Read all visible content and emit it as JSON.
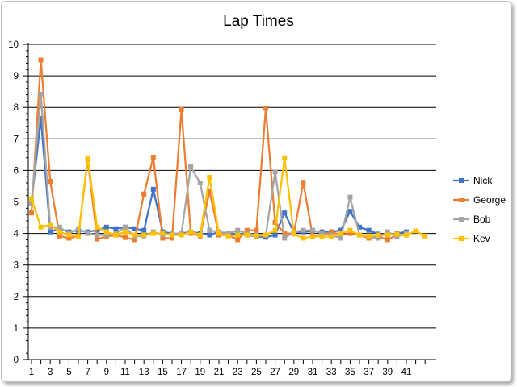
{
  "chart_data": {
    "type": "line",
    "title": "Lap Times",
    "xlabel": "",
    "ylabel": "",
    "ylim": [
      0,
      10
    ],
    "yticks": [
      0,
      1,
      2,
      3,
      4,
      5,
      6,
      7,
      8,
      9,
      10
    ],
    "x": [
      1,
      2,
      3,
      4,
      5,
      6,
      7,
      8,
      9,
      10,
      11,
      12,
      13,
      14,
      15,
      16,
      17,
      18,
      19,
      20,
      21,
      22,
      23,
      24,
      25,
      26,
      27,
      28,
      29,
      30,
      31,
      32,
      33,
      34,
      35,
      36,
      37,
      38,
      39,
      40,
      41,
      42,
      43
    ],
    "xtick_labels": [
      "1",
      "3",
      "5",
      "7",
      "9",
      "11",
      "13",
      "15",
      "17",
      "19",
      "21",
      "23",
      "25",
      "27",
      "29",
      "31",
      "33",
      "35",
      "37",
      "39",
      "41"
    ],
    "legend_position": "right",
    "grid": "horizontal",
    "series": [
      {
        "name": "Nick",
        "color": "#4472C4",
        "marker": "square",
        "values": [
          5.0,
          7.65,
          4.05,
          4.15,
          4.05,
          4.1,
          4.05,
          4.1,
          4.2,
          4.15,
          4.2,
          4.15,
          4.1,
          5.4,
          4.05,
          4.0,
          4.0,
          4.05,
          4.0,
          3.95,
          4.05,
          3.98,
          4.0,
          3.95,
          3.9,
          3.88,
          3.95,
          4.65,
          4.05,
          4.05,
          4.07,
          4.05,
          4.05,
          4.1,
          4.7,
          4.2,
          4.1,
          3.98,
          3.95,
          4.0,
          4.05,
          null,
          null
        ]
      },
      {
        "name": "George",
        "color": "#ED7D31",
        "marker": "square",
        "values": [
          4.65,
          9.5,
          5.65,
          3.92,
          3.85,
          3.92,
          6.35,
          3.82,
          3.9,
          3.95,
          3.87,
          3.8,
          5.25,
          6.42,
          3.85,
          3.85,
          7.93,
          4.0,
          3.92,
          5.35,
          3.95,
          3.95,
          3.8,
          4.1,
          4.1,
          7.97,
          4.35,
          4.0,
          4.0,
          5.62,
          3.92,
          3.95,
          4.05,
          3.95,
          4.0,
          3.95,
          3.85,
          3.9,
          3.8,
          3.95,
          3.95,
          null,
          null
        ]
      },
      {
        "name": "Bob",
        "color": "#A5A5A5",
        "marker": "square",
        "values": [
          4.95,
          8.42,
          4.2,
          4.2,
          4.0,
          4.15,
          4.0,
          3.95,
          3.95,
          4.0,
          4.2,
          3.9,
          3.92,
          4.05,
          3.95,
          4.0,
          4.0,
          6.12,
          5.6,
          4.1,
          4.05,
          4.0,
          4.1,
          4.0,
          3.95,
          3.95,
          5.95,
          3.85,
          4.05,
          4.1,
          4.1,
          4.0,
          3.95,
          3.85,
          5.15,
          3.95,
          3.9,
          3.85,
          4.05,
          3.9,
          4.0,
          null,
          null
        ]
      },
      {
        "name": "Kev",
        "color": "#FFC000",
        "marker": "square",
        "values": [
          5.1,
          4.2,
          4.28,
          4.05,
          3.95,
          3.9,
          6.4,
          4.2,
          4.05,
          3.95,
          4.05,
          3.95,
          3.95,
          4.0,
          4.0,
          3.95,
          3.95,
          4.05,
          3.95,
          5.78,
          4.0,
          3.92,
          3.95,
          3.95,
          3.92,
          3.95,
          4.1,
          6.4,
          3.98,
          3.85,
          3.9,
          3.9,
          3.9,
          4.0,
          4.1,
          3.95,
          3.92,
          3.95,
          3.95,
          3.98,
          3.95,
          4.08,
          3.92
        ]
      }
    ]
  }
}
